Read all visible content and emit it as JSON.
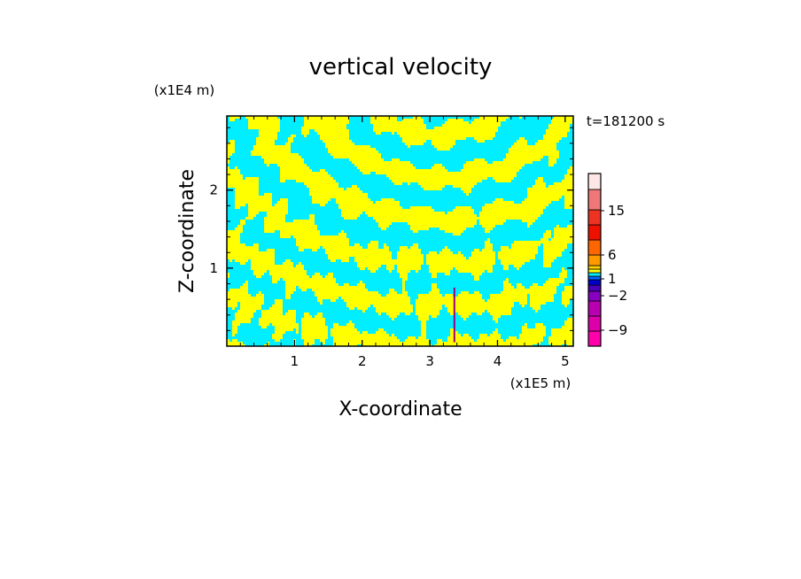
{
  "chart_data": {
    "type": "heatmap",
    "title": "vertical velocity",
    "xlabel": "X-coordinate",
    "ylabel": "Z-coordinate",
    "x_unit": "(x1E5 m)",
    "y_unit": "(x1E4 m)",
    "time_label": "t=181200 s",
    "xlim": [
      0,
      5.12
    ],
    "ylim": [
      0,
      2.95
    ],
    "x_ticks": [
      {
        "value": 1,
        "label": "1"
      },
      {
        "value": 2,
        "label": "2"
      },
      {
        "value": 3,
        "label": "3"
      },
      {
        "value": 4,
        "label": "4"
      },
      {
        "value": 5,
        "label": "5"
      }
    ],
    "y_ticks": [
      {
        "value": 1,
        "label": "1"
      },
      {
        "value": 2,
        "label": "2"
      }
    ],
    "field_colors": {
      "positive": "#ffff00",
      "negative": "#00eeff",
      "spike": "#9a0080"
    },
    "colorbar": {
      "levels": [
        {
          "color": "#ff00aa"
        },
        {
          "color": "#dd00aa"
        },
        {
          "color": "#b800b0"
        },
        {
          "color": "#8800c0"
        },
        {
          "color": "#4a00b8"
        },
        {
          "color": "#0000cc"
        },
        {
          "color": "#0066ff"
        },
        {
          "color": "#00eeff"
        },
        {
          "color": "#ffff00"
        },
        {
          "color": "#ffd000"
        },
        {
          "color": "#ff9900"
        },
        {
          "color": "#ff6600"
        },
        {
          "color": "#ee1100"
        },
        {
          "color": "#ee3322"
        },
        {
          "color": "#f07777"
        },
        {
          "color": "#f5b8b8"
        },
        {
          "color": "#fde6e6"
        }
      ],
      "labels": [
        {
          "value": -9,
          "text": "−9"
        },
        {
          "value": -2,
          "text": "−2"
        },
        {
          "value": 1,
          "text": "1"
        },
        {
          "value": 6,
          "text": "6"
        },
        {
          "value": 15,
          "text": "15"
        }
      ]
    }
  }
}
